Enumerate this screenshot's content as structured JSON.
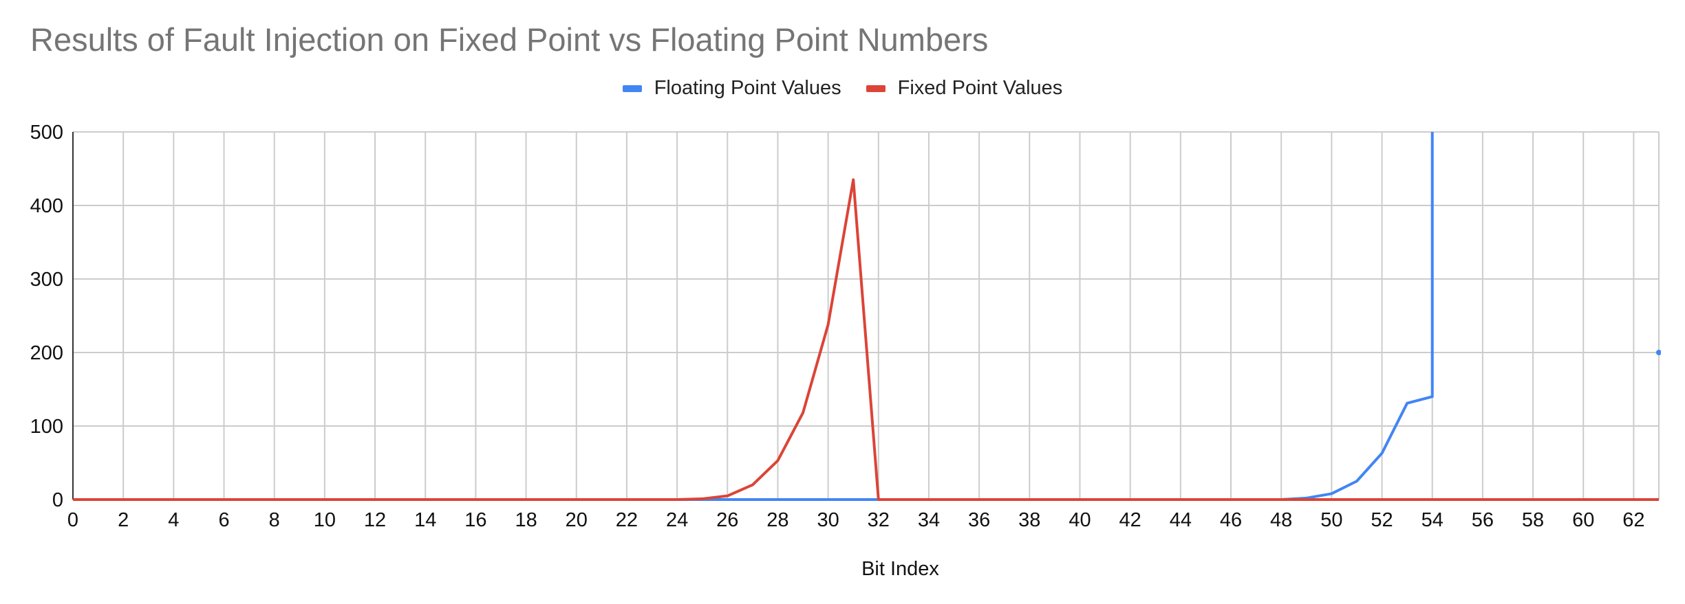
{
  "chart_data": {
    "type": "line",
    "title": "Results of Fault Injection on Fixed Point vs Floating Point Numbers",
    "xlabel": "Bit Index",
    "ylabel": "",
    "x": [
      0,
      1,
      2,
      3,
      4,
      5,
      6,
      7,
      8,
      9,
      10,
      11,
      12,
      13,
      14,
      15,
      16,
      17,
      18,
      19,
      20,
      21,
      22,
      23,
      24,
      25,
      26,
      27,
      28,
      29,
      30,
      31,
      32,
      33,
      34,
      35,
      36,
      37,
      38,
      39,
      40,
      41,
      42,
      43,
      44,
      45,
      46,
      47,
      48,
      49,
      50,
      51,
      52,
      53,
      54,
      55,
      56,
      57,
      58,
      59,
      60,
      61,
      62,
      63
    ],
    "xlim": [
      0,
      63
    ],
    "ylim": [
      0,
      500
    ],
    "x_ticks": [
      0,
      2,
      4,
      6,
      8,
      10,
      12,
      14,
      16,
      18,
      20,
      22,
      24,
      26,
      28,
      30,
      32,
      34,
      36,
      38,
      40,
      42,
      44,
      46,
      48,
      50,
      52,
      54,
      56,
      58,
      60,
      62
    ],
    "y_ticks": [
      0,
      100,
      200,
      300,
      400,
      500
    ],
    "grid": true,
    "legend_position": "top",
    "series": [
      {
        "name": "Floating Point Values",
        "color": "#4285F4",
        "values": [
          0,
          0,
          0,
          0,
          0,
          0,
          0,
          0,
          0,
          0,
          0,
          0,
          0,
          0,
          0,
          0,
          0,
          0,
          0,
          0,
          0,
          0,
          0,
          0,
          0,
          0,
          0,
          0,
          0,
          0,
          0,
          0,
          0,
          0,
          0,
          0,
          0,
          0,
          0,
          0,
          0,
          0,
          0,
          0,
          0,
          0,
          0,
          0,
          0,
          2,
          8,
          25,
          63,
          131,
          140,
          null,
          null,
          null,
          null,
          null,
          null,
          null,
          null,
          200
        ],
        "note_offscale": {
          "x": 54,
          "value_exceeds_ylim": true
        }
      },
      {
        "name": "Fixed Point Values",
        "color": "#DB4437",
        "values": [
          0,
          0,
          0,
          0,
          0,
          0,
          0,
          0,
          0,
          0,
          0,
          0,
          0,
          0,
          0,
          0,
          0,
          0,
          0,
          0,
          0,
          0,
          0,
          0,
          0,
          1,
          5,
          20,
          53,
          118,
          238,
          435,
          0,
          0,
          0,
          0,
          0,
          0,
          0,
          0,
          0,
          0,
          0,
          0,
          0,
          0,
          0,
          0,
          0,
          0,
          0,
          0,
          0,
          0,
          0,
          0,
          0,
          0,
          0,
          0,
          0,
          0,
          0,
          0
        ]
      }
    ]
  }
}
